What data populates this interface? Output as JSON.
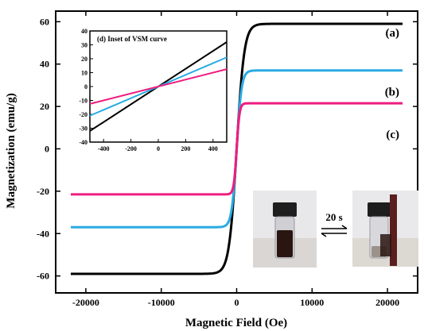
{
  "chart_data": [
    {
      "type": "line",
      "title": "",
      "xlabel": "Magnetic Field (Oe)",
      "ylabel": "Magnetization (emu/g)",
      "xlim": [
        -24000,
        24000
      ],
      "ylim": [
        -68,
        65
      ],
      "x_ticks": [
        -20000,
        -10000,
        0,
        10000,
        20000
      ],
      "y_ticks": [
        -60,
        -40,
        -20,
        0,
        20,
        40,
        60
      ],
      "series": [
        {
          "name": "(a)",
          "color": "#000000",
          "Ms": 59,
          "Hk": 1000
        },
        {
          "name": "(b)",
          "color": "#29abe2",
          "Ms": 37,
          "Hk": 650
        },
        {
          "name": "(c)",
          "color": "#ee1c7f",
          "Ms": 21.5,
          "Hk": 380
        }
      ],
      "x_range_data": [
        -22000,
        22000
      ]
    },
    {
      "type": "line",
      "title": "(d) Inset of VSM curve",
      "xlabel": "",
      "ylabel": "",
      "xlim": [
        -500,
        500
      ],
      "ylim": [
        -40,
        40
      ],
      "x_ticks": [
        -400,
        -200,
        0,
        200,
        400
      ],
      "y_ticks": [
        -40,
        -30,
        -20,
        -10,
        0,
        10,
        20,
        30,
        40
      ],
      "series": [
        {
          "color": "#000000",
          "x": [
            -500,
            500
          ],
          "y": [
            -32,
            32
          ]
        },
        {
          "color": "#29abe2",
          "x": [
            -500,
            500
          ],
          "y": [
            -21,
            21
          ]
        },
        {
          "color": "#ee1c7f",
          "x": [
            -500,
            500
          ],
          "y": [
            -12.5,
            12.5
          ]
        }
      ]
    }
  ],
  "photo": {
    "arrow_label": "20 s",
    "left_vial": "dispersed-vial-photo",
    "right_vial": "magnet-separated-vial-photo"
  }
}
